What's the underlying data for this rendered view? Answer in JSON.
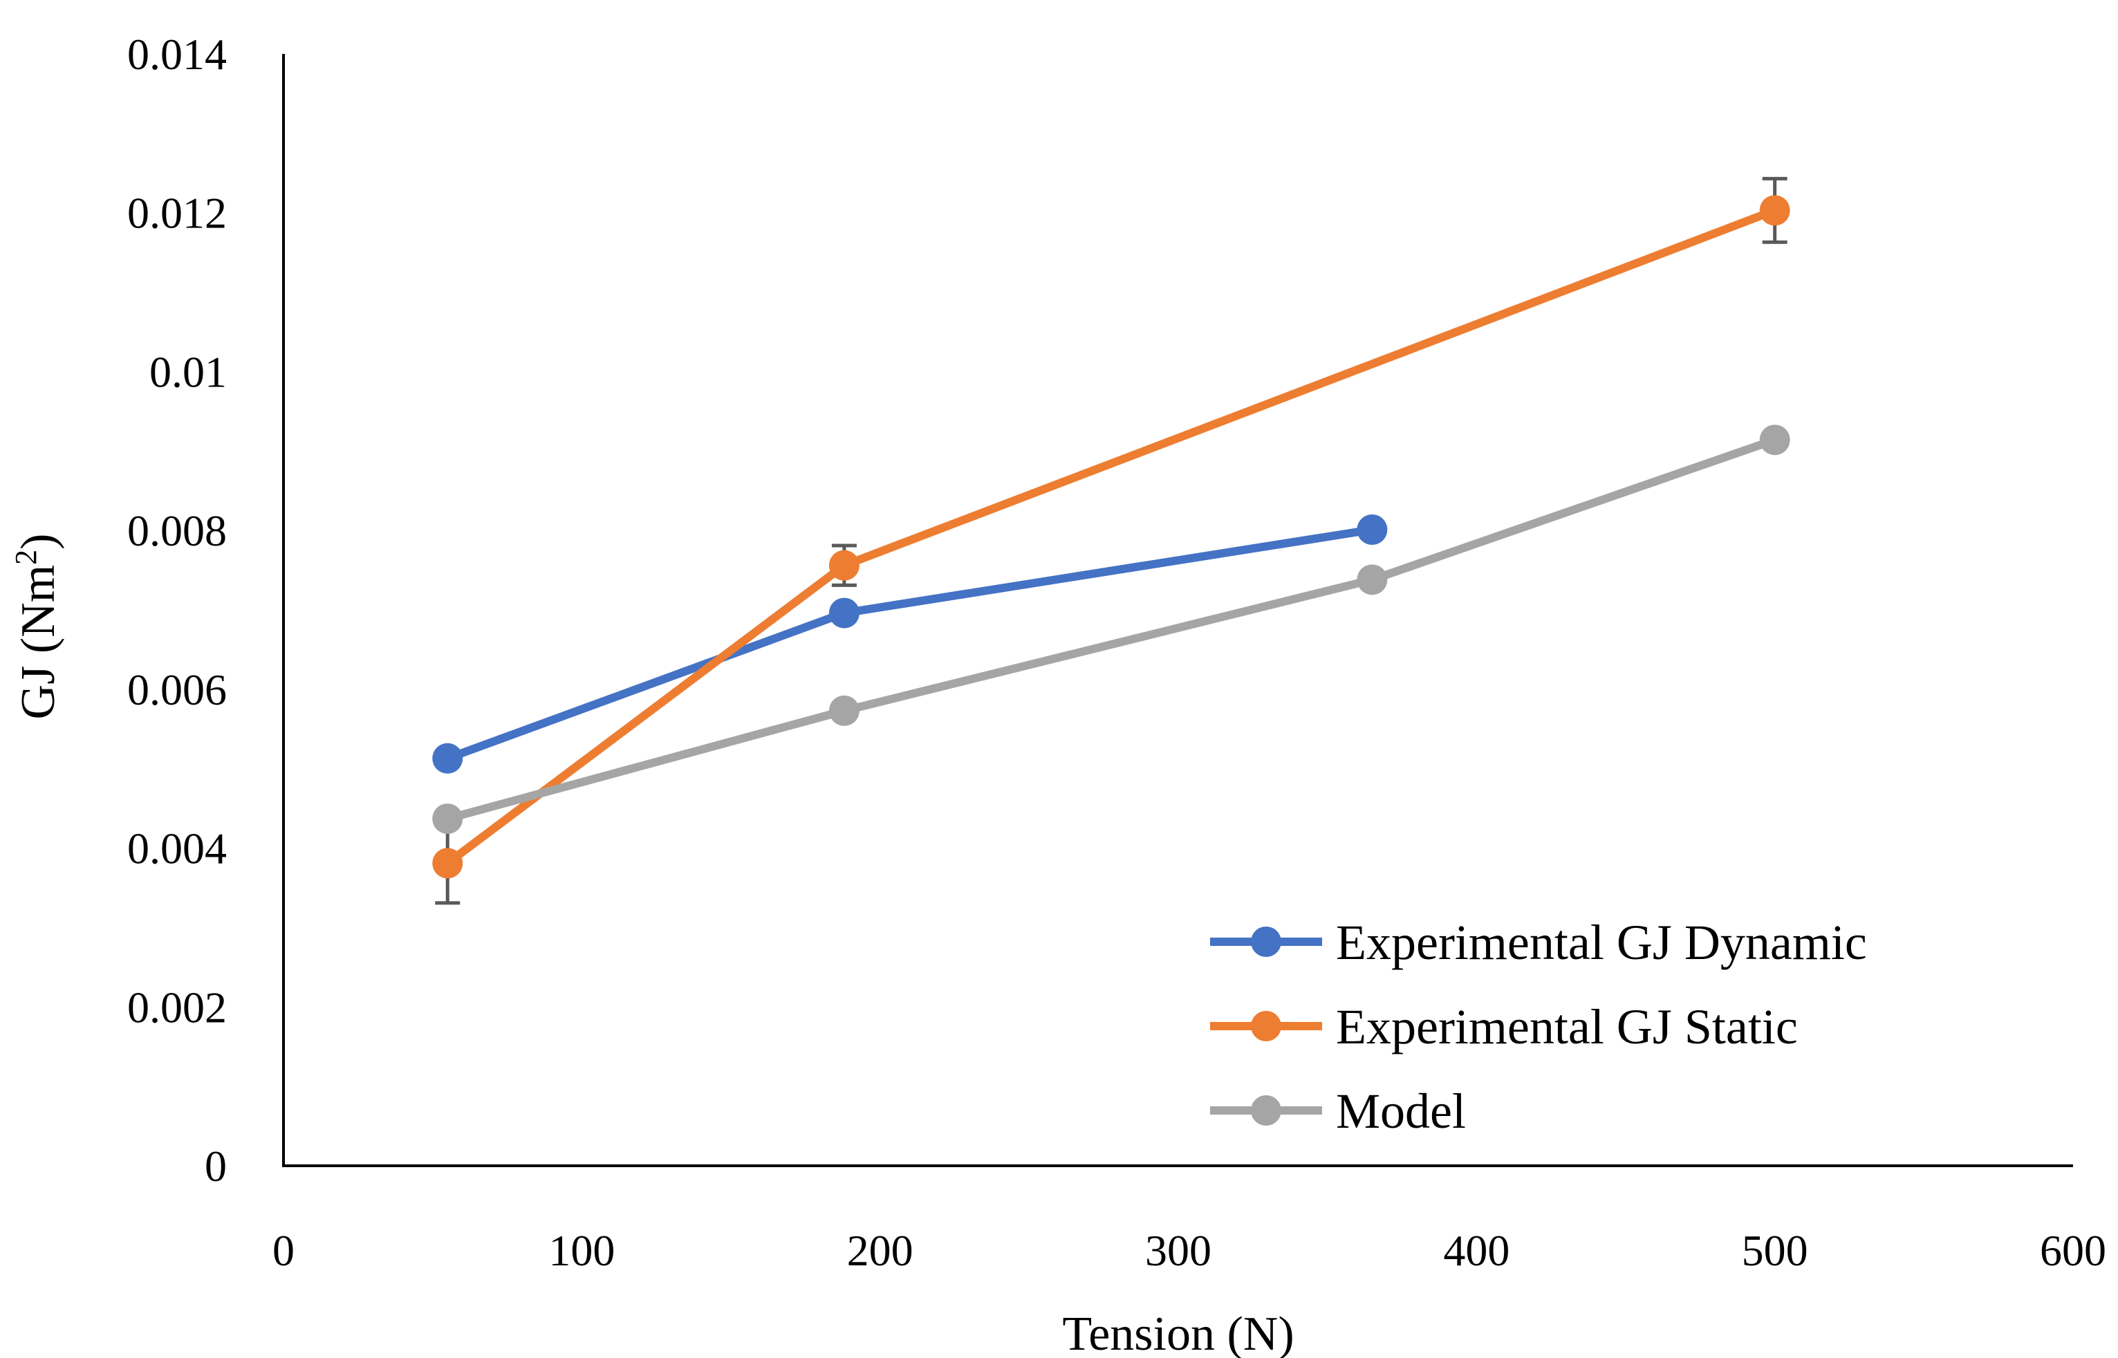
{
  "chart_data": {
    "type": "line",
    "title": "",
    "xlabel": "Tension (N)",
    "ylabel_main": "GJ (Nm",
    "ylabel_sup": "2",
    "ylabel_close": ")",
    "xlim": [
      0,
      600
    ],
    "ylim": [
      0,
      0.014
    ],
    "x_ticks": [
      0,
      100,
      200,
      300,
      400,
      500,
      600
    ],
    "x_tick_labels": [
      "0",
      "100",
      "200",
      "300",
      "400",
      "500",
      "600"
    ],
    "y_ticks": [
      0,
      0.002,
      0.004,
      0.006,
      0.008,
      0.01,
      0.012,
      0.014
    ],
    "y_tick_labels": [
      "0",
      "0.002",
      "0.004",
      "0.006",
      "0.008",
      "0.01",
      "0.012",
      "0.014"
    ],
    "grid": false,
    "legend_position": "bottom-right",
    "series": [
      {
        "name": "Experimental GJ Dynamic",
        "color": "#4472C4",
        "x": [
          55,
          188,
          365
        ],
        "y": [
          0.00513,
          0.00696,
          0.00801
        ],
        "error": null
      },
      {
        "name": "Experimental GJ Static",
        "color": "#ED7D31",
        "x": [
          55,
          188,
          500
        ],
        "y": [
          0.00381,
          0.00756,
          0.01203
        ],
        "error": [
          0.0005,
          0.00025,
          0.0004
        ]
      },
      {
        "name": "Model",
        "color": "#A5A5A5",
        "x": [
          55,
          188,
          365,
          500
        ],
        "y": [
          0.00437,
          0.00573,
          0.00738,
          0.00914
        ],
        "error": null
      }
    ]
  }
}
